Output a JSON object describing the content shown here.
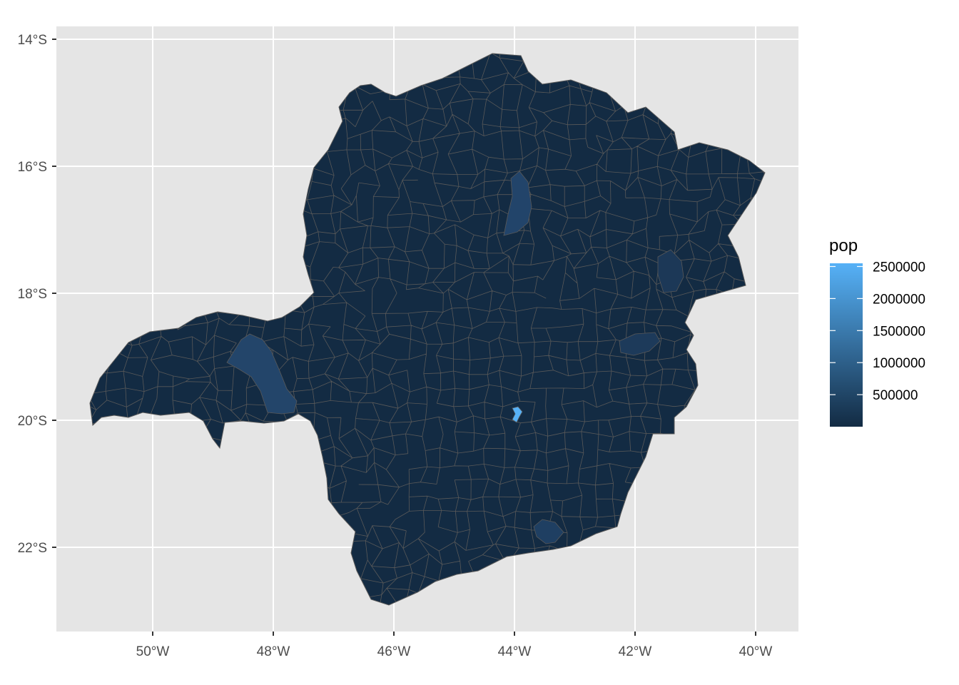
{
  "map": {
    "type": "choropleth",
    "region_fill": "#132b43",
    "region_border": "#595959",
    "panel_background": "#e5e5e5",
    "grid_color": "#ffffff",
    "x_ticks": [
      "50°W",
      "48°W",
      "46°W",
      "44°W",
      "42°W",
      "40°W"
    ],
    "y_ticks": [
      "14°S",
      "16°S",
      "18°S",
      "20°S",
      "22°S"
    ],
    "x_range": [
      -51.6,
      -39.4
    ],
    "y_range": [
      -23.35,
      -13.8
    ],
    "highlights": [
      {
        "name": "",
        "pop": 2500000,
        "color": "#56b1f7"
      },
      {
        "name": "",
        "pop": 690000,
        "color": "#23456a"
      },
      {
        "name": "",
        "pop": 650000,
        "color": "#22446a"
      },
      {
        "name": "",
        "pop": 560000,
        "color": "#1f3f62"
      },
      {
        "name": "",
        "pop": 400000,
        "color": "#1d3a5a"
      },
      {
        "name": "",
        "pop": 330000,
        "color": "#1c3857"
      }
    ]
  },
  "legend": {
    "title": "pop",
    "labels": [
      "2500000",
      "2000000",
      "1500000",
      "1000000",
      "500000"
    ],
    "values": [
      2500000,
      2000000,
      1500000,
      1000000,
      500000
    ],
    "min": 0,
    "max": 2550000,
    "color_low": "#132b43",
    "color_high": "#56b1f7"
  }
}
